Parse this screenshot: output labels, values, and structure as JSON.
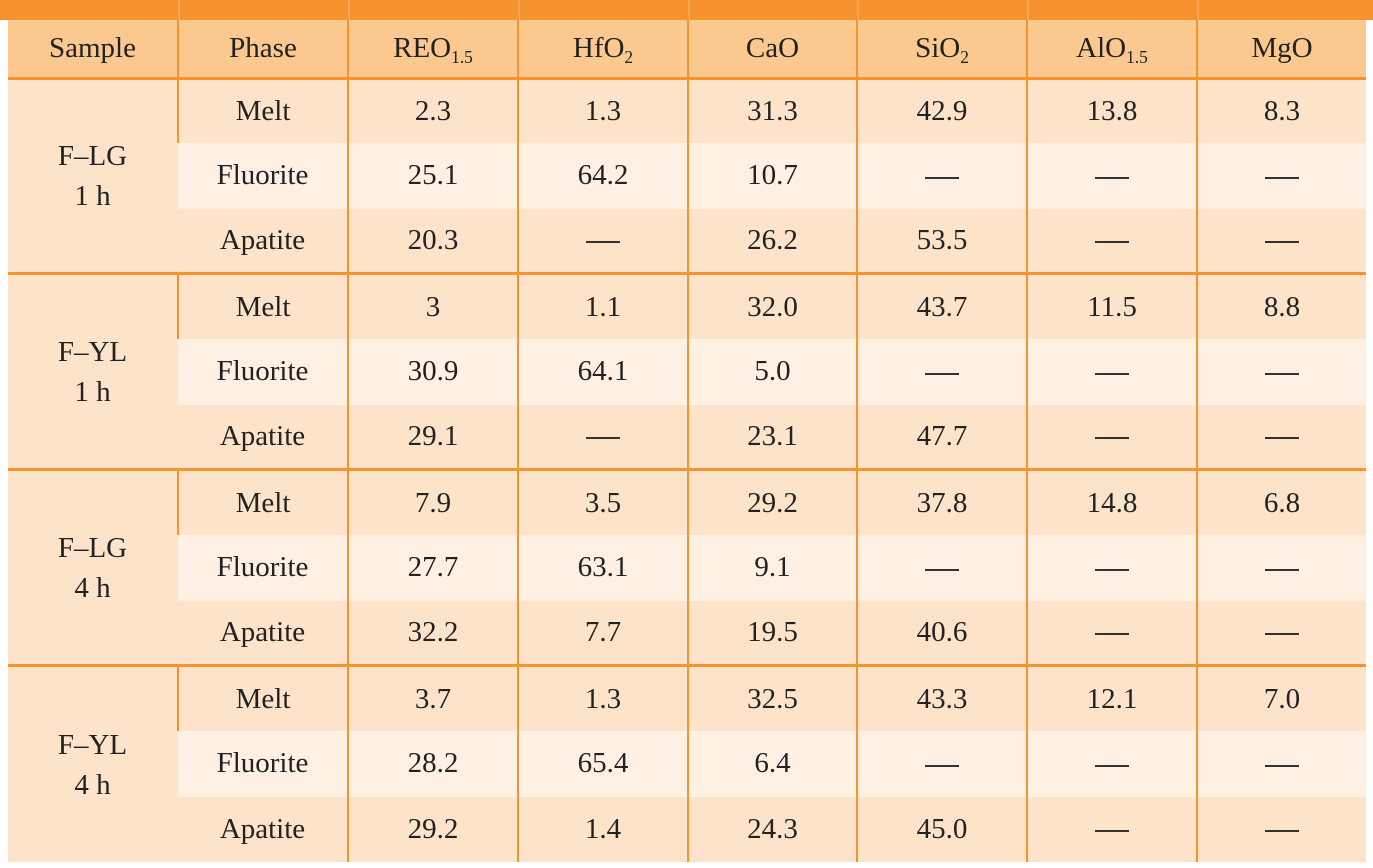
{
  "table": {
    "headers": [
      {
        "main": "Sample",
        "sub": ""
      },
      {
        "main": "Phase",
        "sub": ""
      },
      {
        "main": "REO",
        "sub": "1.5"
      },
      {
        "main": "HfO",
        "sub": "2"
      },
      {
        "main": "CaO",
        "sub": ""
      },
      {
        "main": "SiO",
        "sub": "2"
      },
      {
        "main": "AlO",
        "sub": "1.5"
      },
      {
        "main": "MgO",
        "sub": ""
      }
    ],
    "groups": [
      {
        "sample": [
          "F–LG",
          "1 h"
        ],
        "rows": [
          {
            "phase": "Melt",
            "values": [
              "2.3",
              "1.3",
              "31.3",
              "42.9",
              "13.8",
              "8.3"
            ]
          },
          {
            "phase": "Fluorite",
            "values": [
              "25.1",
              "64.2",
              "10.7",
              "—",
              "—",
              "—"
            ]
          },
          {
            "phase": "Apatite",
            "values": [
              "20.3",
              "—",
              "26.2",
              "53.5",
              "—",
              "—"
            ]
          }
        ]
      },
      {
        "sample": [
          "F–YL",
          "1 h"
        ],
        "rows": [
          {
            "phase": "Melt",
            "values": [
              "3",
              "1.1",
              "32.0",
              "43.7",
              "11.5",
              "8.8"
            ]
          },
          {
            "phase": "Fluorite",
            "values": [
              "30.9",
              "64.1",
              "5.0",
              "—",
              "—",
              "—"
            ]
          },
          {
            "phase": "Apatite",
            "values": [
              "29.1",
              "—",
              "23.1",
              "47.7",
              "—",
              "—"
            ]
          }
        ]
      },
      {
        "sample": [
          "F–LG",
          "4 h"
        ],
        "rows": [
          {
            "phase": "Melt",
            "values": [
              "7.9",
              "3.5",
              "29.2",
              "37.8",
              "14.8",
              "6.8"
            ]
          },
          {
            "phase": "Fluorite",
            "values": [
              "27.7",
              "63.1",
              "9.1",
              "—",
              "—",
              "—"
            ]
          },
          {
            "phase": "Apatite",
            "values": [
              "32.2",
              "7.7",
              "19.5",
              "40.6",
              "—",
              "—"
            ]
          }
        ]
      },
      {
        "sample": [
          "F–YL",
          "4 h"
        ],
        "rows": [
          {
            "phase": "Melt",
            "values": [
              "3.7",
              "1.3",
              "32.5",
              "43.3",
              "12.1",
              "7.0"
            ]
          },
          {
            "phase": "Fluorite",
            "values": [
              "28.2",
              "65.4",
              "6.4",
              "—",
              "—",
              "—"
            ]
          },
          {
            "phase": "Apatite",
            "values": [
              "29.2",
              "1.4",
              "24.3",
              "45.0",
              "—",
              "—"
            ]
          }
        ]
      }
    ]
  },
  "colors": {
    "accent": "#f7932f",
    "header_bg": "#fbc990",
    "row_dark": "#fde3c9",
    "row_light": "#fef1e3"
  }
}
